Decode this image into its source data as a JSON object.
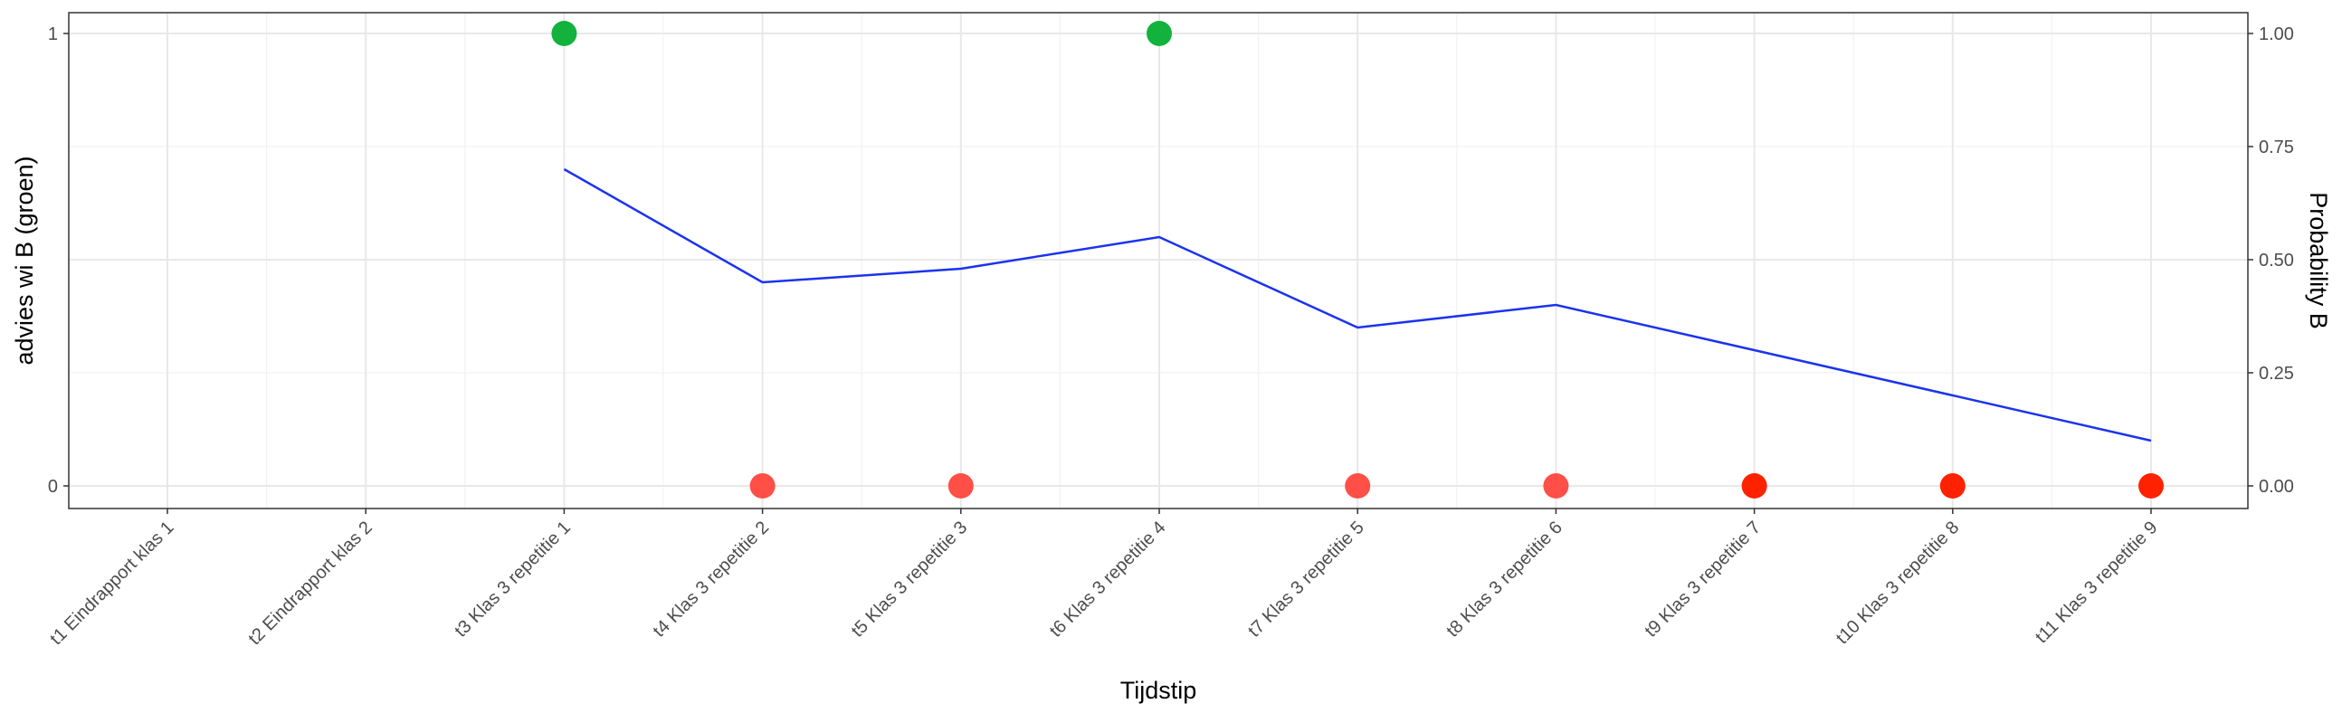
{
  "chart_data": {
    "type": "line",
    "xlabel": "Tijdstip",
    "ylabel_left": "advies wi B (groen)",
    "ylabel_right": "Probability B",
    "categories": [
      "t1 Eindrapport klas 1",
      "t2 Eindrapport klas 2",
      "t3 Klas 3 repetitie 1",
      "t4 Klas 3 repetitie 2",
      "t5 Klas 3 repetitie 3",
      "t6 Klas 3 repetitie 4",
      "t7 Klas 3 repetitie 5",
      "t8 Klas 3 repetitie 6",
      "t9 Klas 3 repetitie 7",
      "t10 Klas 3 repetitie 8",
      "t11 Klas 3 repetitie 9"
    ],
    "left_axis": {
      "ylim": [
        0,
        1
      ],
      "ticks": [
        0,
        1
      ],
      "tick_labels": [
        "0",
        "1"
      ]
    },
    "right_axis": {
      "ylim": [
        0,
        1
      ],
      "ticks": [
        0,
        0.25,
        0.5,
        0.75,
        1.0
      ],
      "tick_labels": [
        "0.00",
        "0.25",
        "0.50",
        "0.75",
        "1.00"
      ]
    },
    "grid": true,
    "advies_points": [
      {
        "category": "t3 Klas 3 repetitie 1",
        "value": 1,
        "color": "#13b23c"
      },
      {
        "category": "t4 Klas 3 repetitie 2",
        "value": 0,
        "color": "#ff4f47"
      },
      {
        "category": "t5 Klas 3 repetitie 3",
        "value": 0,
        "color": "#ff4f47"
      },
      {
        "category": "t6 Klas 3 repetitie 4",
        "value": 1,
        "color": "#13b23c"
      },
      {
        "category": "t7 Klas 3 repetitie 5",
        "value": 0,
        "color": "#ff4f47"
      },
      {
        "category": "t8 Klas 3 repetitie 6",
        "value": 0,
        "color": "#ff4f47"
      },
      {
        "category": "t9 Klas 3 repetitie 7",
        "value": 0,
        "color": "#ff2200"
      },
      {
        "category": "t10 Klas 3 repetitie 8",
        "value": 0,
        "color": "#ff2200"
      },
      {
        "category": "t11 Klas 3 repetitie 9",
        "value": 0,
        "color": "#ff2200"
      }
    ],
    "probability_line": {
      "color": "#1a33ee",
      "points": [
        {
          "category": "t3 Klas 3 repetitie 1",
          "value": 0.7
        },
        {
          "category": "t4 Klas 3 repetitie 2",
          "value": 0.45
        },
        {
          "category": "t5 Klas 3 repetitie 3",
          "value": 0.48
        },
        {
          "category": "t6 Klas 3 repetitie 4",
          "value": 0.55
        },
        {
          "category": "t7 Klas 3 repetitie 5",
          "value": 0.35
        },
        {
          "category": "t8 Klas 3 repetitie 6",
          "value": 0.4
        },
        {
          "category": "t9 Klas 3 repetitie 7",
          "value": 0.3
        },
        {
          "category": "t10 Klas 3 repetitie 8",
          "value": 0.2
        },
        {
          "category": "t11 Klas 3 repetitie 9",
          "value": 0.1
        }
      ]
    }
  }
}
